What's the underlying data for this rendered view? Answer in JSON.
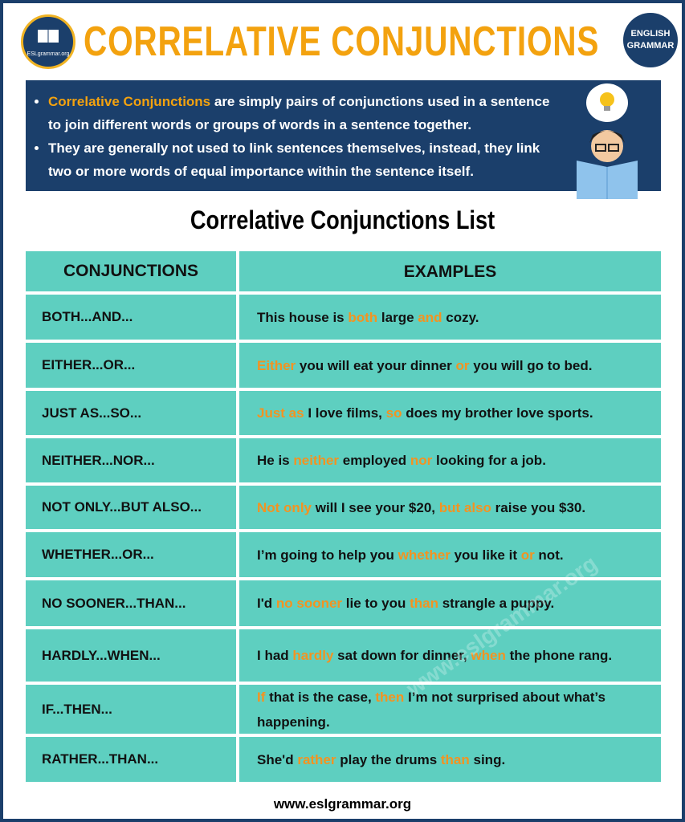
{
  "header": {
    "logo_text": "ESLgrammar.org",
    "title": "CORRELATIVE CONJUNCTIONS",
    "badge": [
      "ENGLISH",
      "GRAMMAR"
    ]
  },
  "intro": {
    "bullets": [
      [
        {
          "text": "Correlative Conjunctions",
          "accent": true
        },
        {
          "text": " are simply pairs of conjunctions used in a sentence to join different words or groups of words in a sentence together."
        }
      ],
      [
        {
          "text": "They are generally not used to link sentences themselves, instead, they link two or more words of equal importance within the sentence itself."
        }
      ]
    ]
  },
  "subtitle": "Correlative Conjunctions List",
  "table": {
    "headers": [
      "CONJUNCTIONS",
      "EXAMPLES"
    ],
    "rows": [
      {
        "conjunction": "BOTH...AND...",
        "example": [
          {
            "text": "This house is "
          },
          {
            "text": "both",
            "accent": true
          },
          {
            "text": " large "
          },
          {
            "text": "and",
            "accent": true
          },
          {
            "text": " cozy."
          }
        ]
      },
      {
        "conjunction": "EITHER...OR...",
        "example": [
          {
            "text": "Either",
            "accent": true
          },
          {
            "text": " you will eat your dinner "
          },
          {
            "text": "or",
            "accent": true
          },
          {
            "text": " you will go to bed."
          }
        ]
      },
      {
        "conjunction": "JUST AS...SO...",
        "example": [
          {
            "text": "Just as",
            "accent": true
          },
          {
            "text": " I love films, "
          },
          {
            "text": "so",
            "accent": true
          },
          {
            "text": " does my brother love sports."
          }
        ]
      },
      {
        "conjunction": "NEITHER...NOR...",
        "example": [
          {
            "text": "He is "
          },
          {
            "text": "neither",
            "accent": true
          },
          {
            "text": " employed "
          },
          {
            "text": "nor",
            "accent": true
          },
          {
            "text": " looking for a job."
          }
        ]
      },
      {
        "conjunction": "NOT ONLY...BUT ALSO...",
        "example": [
          {
            "text": "Not only",
            "accent": true
          },
          {
            "text": " will I see your $20, "
          },
          {
            "text": "but also",
            "accent": true
          },
          {
            "text": " raise you $30."
          }
        ]
      },
      {
        "conjunction": "WHETHER...OR...",
        "example": [
          {
            "text": "I’m going to help you "
          },
          {
            "text": "whether",
            "accent": true
          },
          {
            "text": " you like it "
          },
          {
            "text": "or",
            "accent": true
          },
          {
            "text": " not."
          }
        ]
      },
      {
        "conjunction": "NO SOONER...THAN...",
        "example": [
          {
            "text": "I'd "
          },
          {
            "text": "no sooner",
            "accent": true
          },
          {
            "text": " lie to you "
          },
          {
            "text": "than",
            "accent": true
          },
          {
            "text": " strangle a puppy."
          }
        ]
      },
      {
        "conjunction": "HARDLY...WHEN...",
        "example": [
          {
            "text": "I had "
          },
          {
            "text": "hardly",
            "accent": true
          },
          {
            "text": " sat down for dinner, "
          },
          {
            "text": "when",
            "accent": true
          },
          {
            "text": " the phone rang."
          }
        ]
      },
      {
        "conjunction": "IF...THEN...",
        "example": [
          {
            "text": "If",
            "accent": true
          },
          {
            "text": " that is the case, "
          },
          {
            "text": "then",
            "accent": true
          },
          {
            "text": " I’m not surprised about what’s happening."
          }
        ]
      },
      {
        "conjunction": "RATHER...THAN...",
        "example": [
          {
            "text": "She'd "
          },
          {
            "text": "rather",
            "accent": true
          },
          {
            "text": " play the drums "
          },
          {
            "text": "than",
            "accent": true
          },
          {
            "text": " sing."
          }
        ]
      }
    ]
  },
  "watermark": "www.eslgrammar.org",
  "footer": "www.eslgrammar.org"
}
